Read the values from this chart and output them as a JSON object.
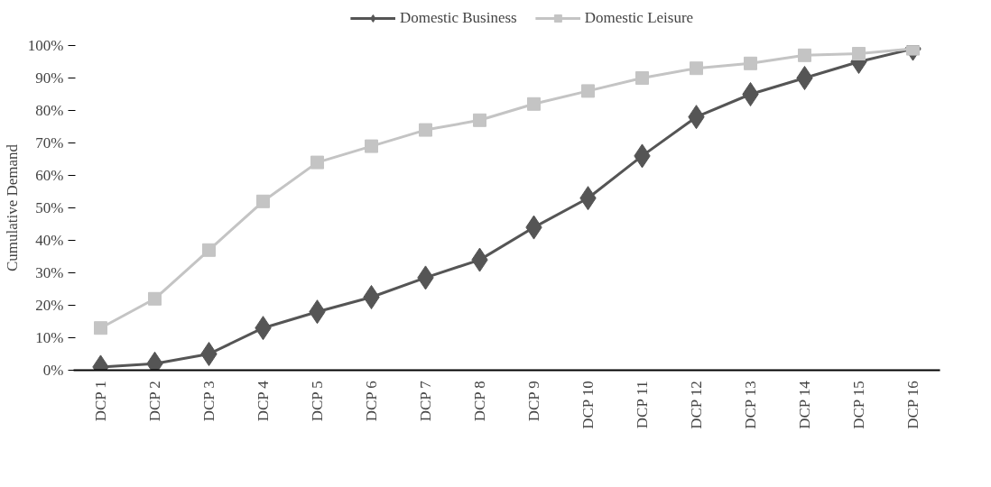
{
  "chart_data": {
    "type": "line",
    "ylabel": "Cumulative Demand",
    "categories": [
      "DCP 1",
      "DCP 2",
      "DCP 3",
      "DCP 4",
      "DCP 5",
      "DCP 6",
      "DCP 7",
      "DCP 8",
      "DCP 9",
      "DCP 10",
      "DCP 11",
      "DCP 12",
      "DCP 13",
      "DCP 14",
      "DCP 15",
      "DCP 16"
    ],
    "series": [
      {
        "name": "Domestic Business",
        "color": "#555555",
        "marker": "diamond",
        "values": [
          1,
          2,
          5,
          13,
          18,
          22.5,
          28.5,
          34,
          44,
          53,
          66,
          78,
          85,
          90,
          95,
          99
        ]
      },
      {
        "name": "Domestic Leisure",
        "color": "#c4c4c4",
        "marker": "square",
        "values": [
          13,
          22,
          37,
          52,
          64,
          69,
          74,
          77,
          82,
          86,
          90,
          93,
          94.5,
          97,
          97.5,
          99
        ]
      }
    ],
    "ylim": [
      0,
      100
    ],
    "yticks": [
      {
        "value": 0,
        "label": "0%"
      },
      {
        "value": 10,
        "label": "10%"
      },
      {
        "value": 20,
        "label": "20%"
      },
      {
        "value": 30,
        "label": "30%"
      },
      {
        "value": 40,
        "label": "40%"
      },
      {
        "value": 50,
        "label": "50%"
      },
      {
        "value": 60,
        "label": "60%"
      },
      {
        "value": 70,
        "label": "70%"
      },
      {
        "value": 80,
        "label": "80%"
      },
      {
        "value": 90,
        "label": "90%"
      },
      {
        "value": 100,
        "label": "100%"
      }
    ],
    "grid": false,
    "legend": "top",
    "line_style": "solid"
  }
}
